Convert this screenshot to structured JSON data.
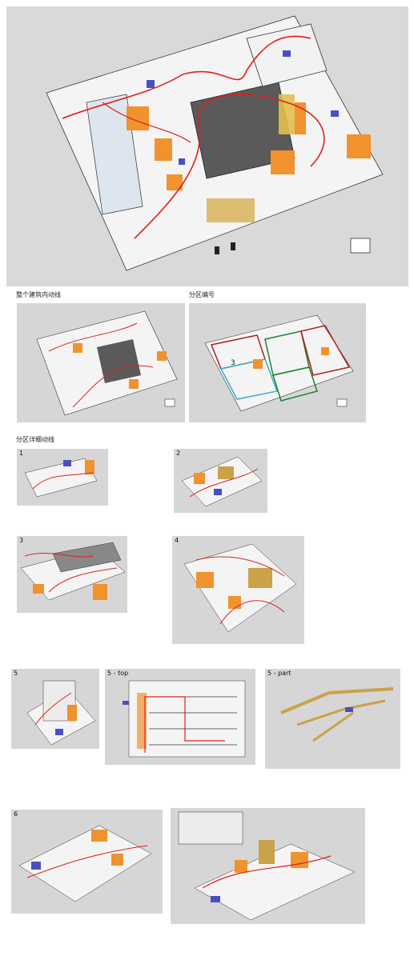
{
  "captions": {
    "whole": "整个建筑内动线",
    "zones": "分区编号",
    "detail": "分区详细动线"
  },
  "panels": {
    "p1": "1",
    "p2": "2",
    "p3": "3",
    "p4": "4",
    "p5": "5",
    "p5top": "5 - top",
    "p5part": "5 - part",
    "p6": "6",
    "zoneLabel3": "3"
  },
  "colors": {
    "bg_gray": "#d6d6d6",
    "orange": "#f0922e",
    "blue": "#4a4fc4",
    "red_line": "#e0201a",
    "gold": "#c9a24a"
  }
}
